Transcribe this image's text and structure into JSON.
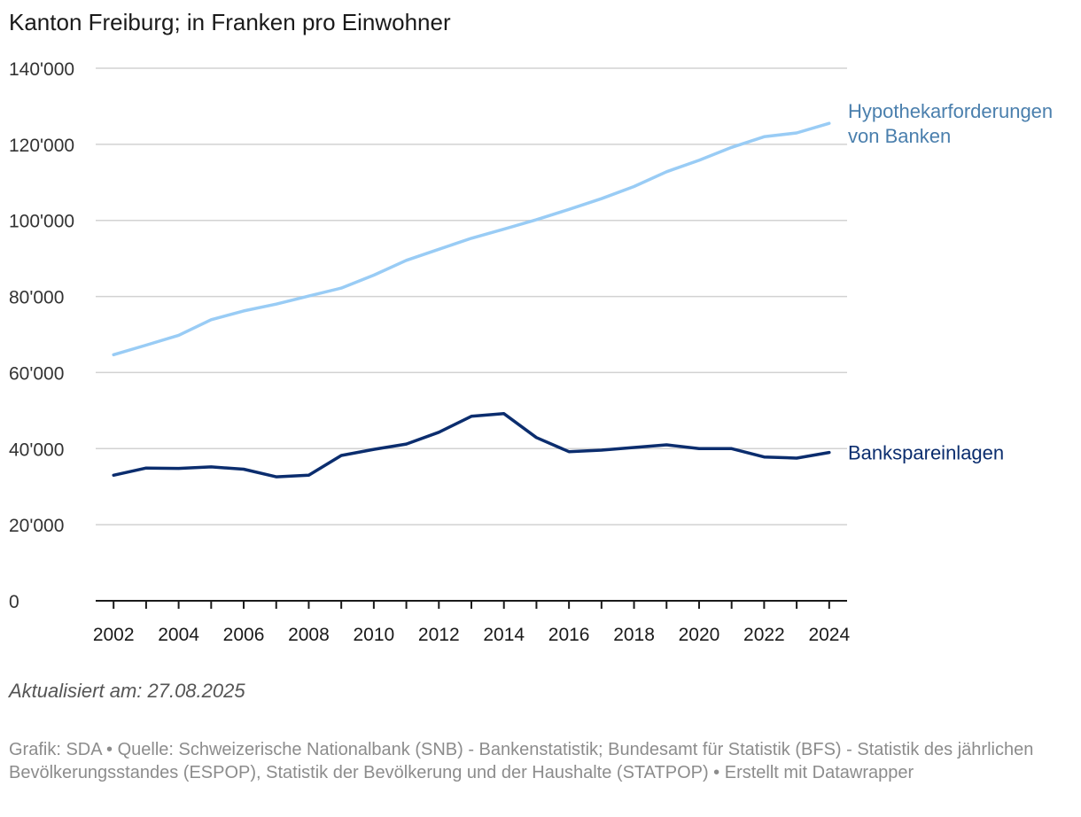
{
  "chart_data": {
    "type": "line",
    "title": "Kanton Freiburg; in Franken pro Einwohner",
    "xlabel": "",
    "ylabel": "",
    "ylim": [
      0,
      140000
    ],
    "yticks": [
      0,
      20000,
      40000,
      60000,
      80000,
      100000,
      120000,
      140000
    ],
    "ytick_labels": [
      "0",
      "20'000",
      "40'000",
      "60'000",
      "80'000",
      "100'000",
      "120'000",
      "140'000"
    ],
    "xticks": [
      2002,
      2004,
      2006,
      2008,
      2010,
      2012,
      2014,
      2016,
      2018,
      2020,
      2022,
      2024
    ],
    "xtick_labels": [
      "2002",
      "2004",
      "2006",
      "2008",
      "2010",
      "2012",
      "2014",
      "2016",
      "2018",
      "2020",
      "2022",
      "2024"
    ],
    "grid": true,
    "x": [
      2002,
      2003,
      2004,
      2005,
      2006,
      2007,
      2008,
      2009,
      2010,
      2011,
      2012,
      2013,
      2014,
      2015,
      2016,
      2017,
      2018,
      2019,
      2020,
      2021,
      2022,
      2023,
      2024
    ],
    "series": [
      {
        "name": "Hypothekarforderungen von Banken",
        "label_lines": [
          "Hypothekarforderungen",
          "von Banken"
        ],
        "color": "#99ccf5",
        "label_color": "#4a7fad",
        "values": [
          64700,
          67200,
          69800,
          73900,
          76200,
          78000,
          80100,
          82200,
          85600,
          89500,
          92400,
          95300,
          97700,
          100200,
          102900,
          105700,
          108900,
          112800,
          115800,
          119200,
          122000,
          123000,
          125500
        ]
      },
      {
        "name": "Bankspareinlagen",
        "label_lines": [
          "Bankspareinlagen"
        ],
        "color": "#0b2d6e",
        "label_color": "#0b2d6e",
        "values": [
          33000,
          34900,
          34800,
          35200,
          34600,
          32600,
          33000,
          38200,
          39800,
          41200,
          44300,
          48500,
          49200,
          42900,
          39200,
          39600,
          40300,
          41000,
          40000,
          40000,
          37800,
          37500,
          39000
        ]
      }
    ]
  },
  "footer": {
    "updated": "Aktualisiert am: 27.08.2025",
    "source": "Grafik: SDA • Quelle: Schweizerische Nationalbank (SNB) - Bankenstatistik; Bundesamt für Statistik (BFS) - Statistik des jährlichen Bevölkerungsstandes (ESPOP), Statistik der Bevölkerung und der Haushalte (STATPOP) • Erstellt mit Datawrapper"
  }
}
